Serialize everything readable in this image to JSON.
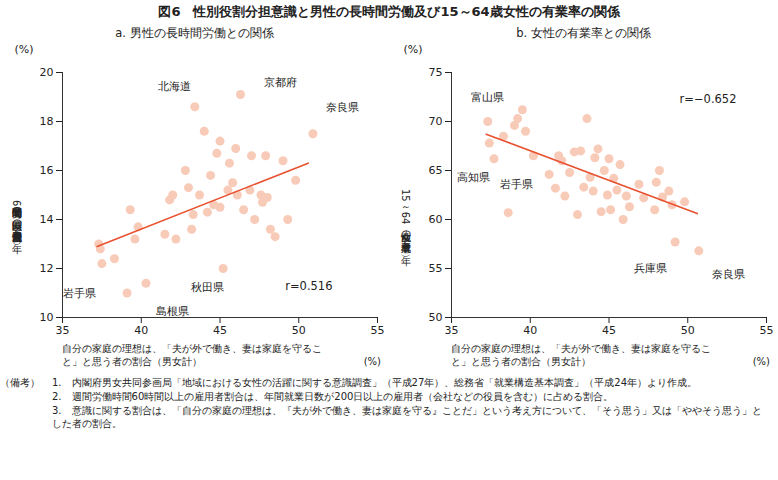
{
  "title": "図6　性別役割分担意識と男性の長時間労働及び15～64歳女性の有業率の関係",
  "chart_data": [
    {
      "type": "scatter",
      "title": "a. 男性の長時間労働との関係",
      "x_label": "自分の家庭の理想は、「夫が外で働き、妻は家庭を守ること」と思う者の割合（男女計）",
      "x_unit": "(%)",
      "y_label": "週間労働時間60時間以上の男性雇用者割合（平成24年）",
      "y_unit": "(%)",
      "x": [
        37.3,
        37.4,
        37.5,
        38.3,
        39.1,
        40.3,
        39.3,
        39.6,
        39.8,
        41.5,
        41.8,
        42.0,
        42.2,
        42.8,
        43.0,
        43.2,
        43.3,
        43.4,
        43.7,
        44.0,
        44.2,
        44.4,
        44.6,
        44.8,
        45.0,
        45.0,
        45.2,
        45.5,
        45.6,
        45.8,
        46.0,
        46.1,
        46.3,
        46.5,
        46.9,
        47.0,
        47.2,
        47.6,
        47.9,
        47.7,
        48.0,
        48.2,
        48.5,
        49.0,
        49.3,
        49.8,
        50.9
      ],
      "y": [
        13.0,
        12.8,
        12.2,
        12.4,
        11.0,
        11.4,
        14.4,
        13.2,
        13.7,
        13.4,
        14.8,
        15.0,
        13.2,
        16.0,
        15.3,
        13.6,
        14.2,
        18.6,
        15.0,
        17.6,
        14.3,
        15.8,
        14.6,
        16.7,
        17.2,
        14.5,
        12.0,
        15.2,
        16.3,
        15.5,
        16.9,
        15.0,
        19.1,
        14.4,
        15.2,
        16.6,
        14.0,
        15.0,
        16.6,
        14.7,
        14.9,
        13.6,
        13.3,
        16.4,
        14.0,
        15.6,
        17.5
      ],
      "labels": [
        null,
        null,
        "岩手県",
        null,
        "島根県",
        "秋田県",
        null,
        null,
        null,
        null,
        null,
        null,
        null,
        null,
        null,
        null,
        null,
        "北海道",
        null,
        null,
        null,
        null,
        null,
        null,
        null,
        null,
        null,
        null,
        null,
        null,
        null,
        null,
        "京都府",
        null,
        null,
        null,
        null,
        null,
        null,
        null,
        null,
        null,
        null,
        null,
        null,
        null,
        "奈良県"
      ],
      "color": "#f8cbb8",
      "trend_line": {
        "x": [
          37.2,
          50.6
        ],
        "y": [
          12.9,
          16.3
        ],
        "color": "#e8502f"
      },
      "annotation": "r=0.516",
      "xlim": [
        35,
        55
      ],
      "xticks": [
        35,
        40,
        45,
        50,
        55
      ],
      "ylim": [
        10,
        20
      ],
      "yticks": [
        10,
        12,
        14,
        16,
        18,
        20
      ],
      "grid": false
    },
    {
      "type": "scatter",
      "title": "b. 女性の有業率との関係",
      "x_label": "自分の家庭の理想は、「夫が外で働き、妻は家庭を守ること」と思う者の割合（男女計）",
      "x_unit": "(%)",
      "y_label": "15～64歳女性の有業率（平成24年）",
      "y_unit": "(%)",
      "x": [
        37.3,
        37.4,
        37.7,
        38.3,
        38.6,
        39.0,
        39.2,
        39.5,
        39.7,
        40.2,
        41.2,
        41.6,
        41.8,
        42.0,
        42.2,
        42.5,
        42.8,
        43.0,
        43.2,
        43.4,
        43.6,
        43.8,
        44.0,
        44.1,
        44.3,
        44.5,
        44.7,
        44.9,
        45.0,
        45.1,
        45.3,
        45.5,
        45.7,
        45.9,
        46.1,
        46.3,
        46.9,
        47.2,
        47.9,
        48.0,
        48.2,
        48.4,
        48.8,
        49.0,
        49.2,
        49.8,
        50.7
      ],
      "y": [
        70.0,
        67.8,
        66.2,
        68.5,
        60.7,
        69.6,
        70.3,
        71.2,
        69.0,
        66.5,
        64.6,
        63.2,
        66.5,
        66.0,
        62.4,
        64.8,
        66.9,
        60.5,
        67.0,
        63.3,
        70.3,
        64.3,
        62.9,
        66.3,
        67.2,
        60.8,
        65.0,
        62.5,
        66.2,
        61.0,
        64.2,
        63.0,
        65.6,
        60.0,
        62.4,
        61.3,
        63.6,
        62.2,
        61.0,
        63.8,
        65.0,
        62.3,
        62.9,
        61.5,
        57.7,
        61.8,
        56.8
      ],
      "labels": [
        "富山県",
        "高知県",
        "岩手県",
        null,
        null,
        null,
        null,
        null,
        null,
        null,
        null,
        null,
        null,
        null,
        null,
        null,
        null,
        null,
        null,
        null,
        null,
        null,
        null,
        null,
        null,
        null,
        null,
        null,
        null,
        null,
        null,
        null,
        null,
        null,
        null,
        null,
        null,
        null,
        null,
        null,
        null,
        null,
        null,
        null,
        "兵庫県",
        null,
        "奈良県"
      ],
      "color": "#f8cbb8",
      "trend_line": {
        "x": [
          37.2,
          50.6
        ],
        "y": [
          68.7,
          60.6
        ],
        "color": "#e8502f"
      },
      "annotation": "r=−0.652",
      "xlim": [
        35,
        55
      ],
      "xticks": [
        35,
        40,
        45,
        50,
        55
      ],
      "ylim": [
        50,
        75
      ],
      "yticks": [
        50,
        55,
        60,
        65,
        70,
        75
      ],
      "grid": false
    }
  ],
  "notes": {
    "heading": "（備考）",
    "items": [
      "1.　内閣府男女共同参画局「地域における女性の活躍に関する意識調査」（平成27年）、総務省「就業構造基本調査」（平成24年）より作成。",
      "2.　週間労働時間60時間以上の雇用者割合は、年間就業日数が200日以上の雇用者（会社などの役員を含む）に占める割合。",
      "3.　意識に関する割合は、「自分の家庭の理想は、『夫が外で働き、妻は家庭を守る』ことだ」という考え方について、「そう思う」又は「ややそう思う」とした者の割合。"
    ]
  }
}
